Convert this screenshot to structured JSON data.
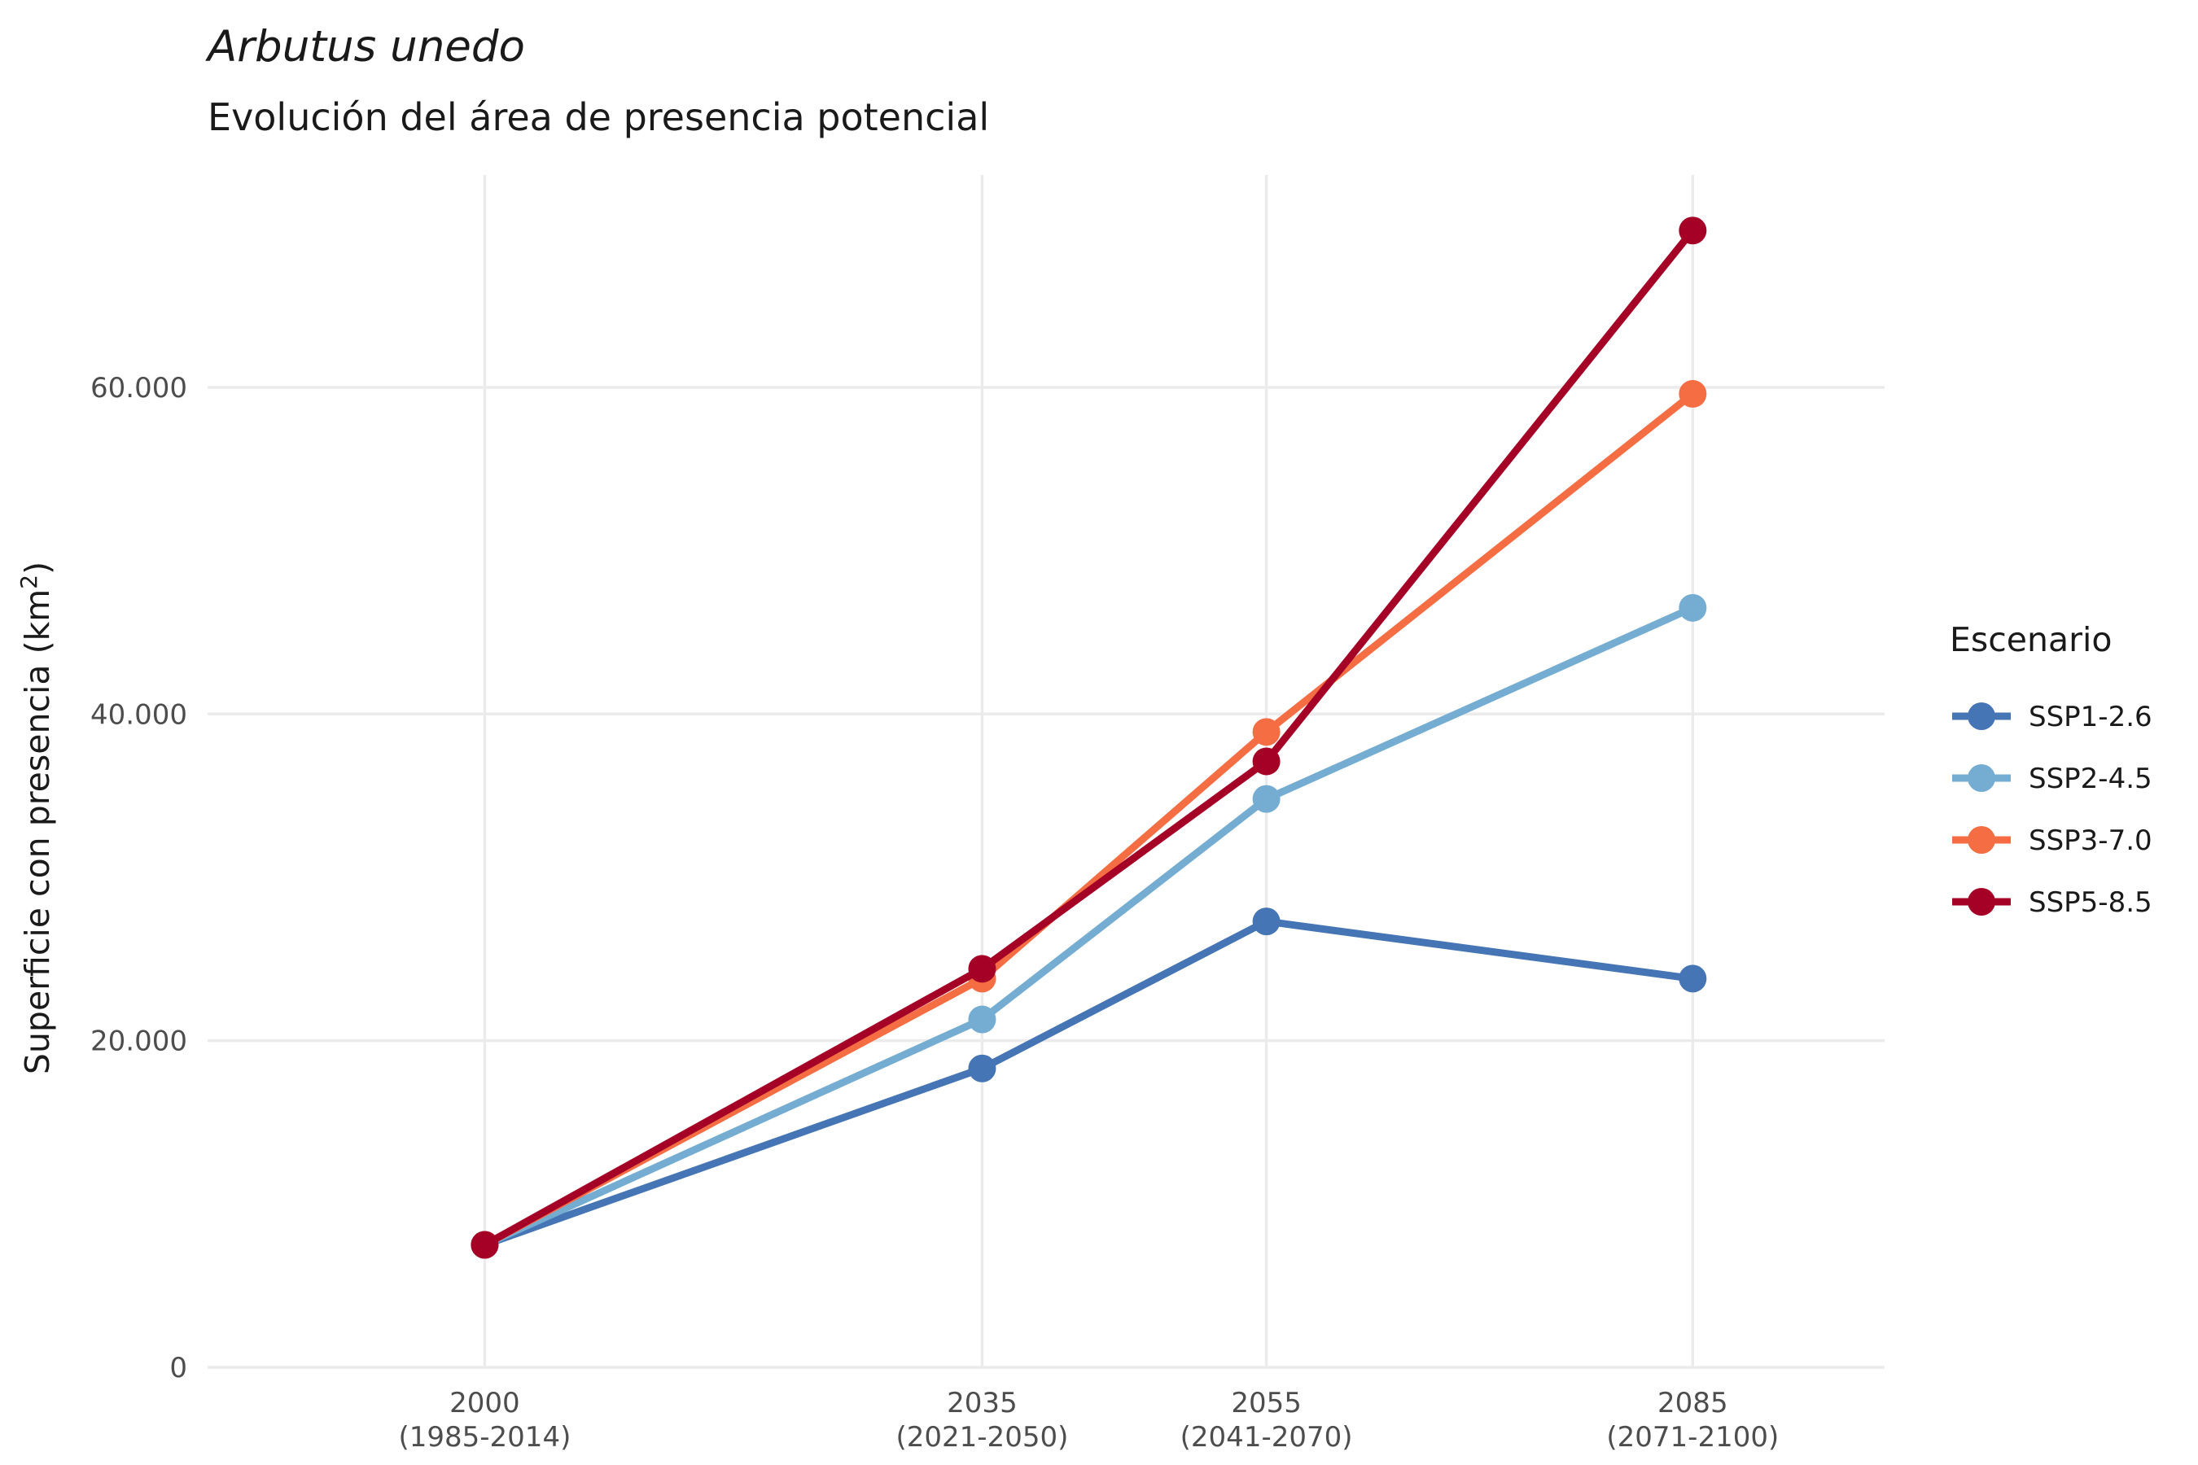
{
  "chart_data": {
    "type": "line",
    "title": "Arbutus unedo",
    "subtitle": "Evolución del área de presencia potencial",
    "ylabel": "Superficie con presencia (km²)",
    "xlabel": "",
    "x": [
      2000,
      2035,
      2055,
      2085
    ],
    "x_tick_labels": [
      [
        "2000",
        "(1985-2014)"
      ],
      [
        "2035",
        "(2021-2050)"
      ],
      [
        "2055",
        "(2041-2070)"
      ],
      [
        "2085",
        "(2071-2100)"
      ]
    ],
    "xlim": [
      1980.5,
      2098.5
    ],
    "ylim": [
      0,
      73000
    ],
    "y_ticks": [
      0,
      20000,
      40000,
      60000
    ],
    "y_tick_labels": [
      "0",
      "20.000",
      "40.000",
      "60.000"
    ],
    "grid": true,
    "legend": {
      "title": "Escenario",
      "position": "right"
    },
    "series": [
      {
        "name": "SSP1-2.6",
        "color": "#4575b4",
        "values": [
          7500,
          18300,
          27300,
          23800
        ]
      },
      {
        "name": "SSP2-4.5",
        "color": "#74add1",
        "values": [
          7500,
          21300,
          34800,
          46500
        ]
      },
      {
        "name": "SSP3-7.0",
        "color": "#f46d43",
        "values": [
          7500,
          23800,
          38900,
          59600
        ]
      },
      {
        "name": "SSP5-8.5",
        "color": "#a50026",
        "values": [
          7500,
          24400,
          37100,
          69600
        ]
      }
    ]
  }
}
